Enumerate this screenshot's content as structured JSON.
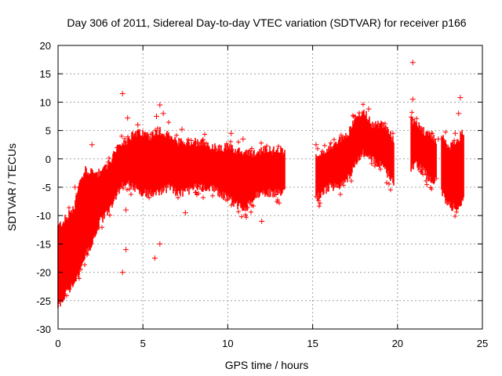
{
  "chart_data": {
    "type": "scatter",
    "title": "Day 306 of 2011, Sidereal Day-to-day VTEC variation (SDTVAR) for receiver p166",
    "xlabel": "GPS time / hours",
    "ylabel": "SDTVAR / TECUs",
    "xlim": [
      0,
      25
    ],
    "ylim": [
      -30,
      20
    ],
    "xticks": [
      0,
      5,
      10,
      15,
      20,
      25
    ],
    "yticks": [
      -30,
      -25,
      -20,
      -15,
      -10,
      -5,
      0,
      5,
      10,
      15,
      20
    ],
    "grid": true,
    "marker": "+",
    "color": "#ff0000",
    "series": [
      {
        "name": "SDTVAR",
        "segments": [
          {
            "x": [
              0.0,
              0.3,
              0.6,
              1.0,
              1.3,
              1.6,
              2.0,
              2.5,
              3.0,
              3.5,
              4.0,
              4.5,
              5.0,
              5.5,
              6.0,
              6.5,
              7.0,
              7.5,
              8.0,
              8.5,
              9.0,
              9.5,
              10.0,
              10.5,
              11.0,
              11.5,
              12.0,
              12.5,
              13.0,
              13.4
            ],
            "upper": [
              -12,
              -11,
              -10,
              -8,
              -4,
              -2,
              -2.5,
              -2.5,
              -1,
              2,
              3,
              4.5,
              4.5,
              4,
              5,
              4,
              3,
              3,
              3,
              3,
              2,
              2,
              2,
              1.5,
              1,
              1,
              1.5,
              1.5,
              1.5,
              1.5
            ],
            "lower": [
              -26,
              -25,
              -23,
              -22,
              -20,
              -17,
              -15,
              -11,
              -9,
              -6,
              -4,
              -5,
              -6,
              -6,
              -6,
              -5,
              -6,
              -6,
              -5,
              -5,
              -5,
              -6,
              -7,
              -8,
              -9,
              -7,
              -6,
              -6,
              -6,
              -6
            ]
          },
          {
            "x": [
              15.2,
              15.5,
              16.0,
              16.5,
              17.0,
              17.5,
              18.0,
              18.5,
              19.0,
              19.5,
              19.8
            ],
            "upper": [
              1,
              1,
              2,
              3,
              4,
              7,
              8.5,
              6,
              6,
              5,
              3
            ],
            "lower": [
              -7,
              -6,
              -5,
              -5,
              -4,
              -1,
              1,
              0,
              -1,
              -3,
              -4
            ]
          },
          {
            "x": [
              20.8,
              21.0,
              21.5,
              22.0,
              22.3
            ],
            "upper": [
              7,
              6.5,
              5,
              4,
              3
            ],
            "lower": [
              -2,
              -1,
              -2,
              -4,
              -4
            ]
          },
          {
            "x": [
              22.6,
              23.0,
              23.5,
              23.9
            ],
            "upper": [
              4,
              2,
              3,
              5
            ],
            "lower": [
              -6,
              -8,
              -9,
              -7
            ]
          }
        ],
        "outliers": [
          [
            3.8,
            11.5
          ],
          [
            5.8,
            7.5
          ],
          [
            6.0,
            9.5
          ],
          [
            6.2,
            8
          ],
          [
            4.1,
            7.2
          ],
          [
            4.7,
            6
          ],
          [
            2.0,
            2.5
          ],
          [
            7.3,
            5.2
          ],
          [
            10.2,
            4.5
          ],
          [
            10.9,
            3.5
          ],
          [
            12.0,
            -11
          ],
          [
            3.8,
            -20
          ],
          [
            4.0,
            -16
          ],
          [
            4.0,
            -9
          ],
          [
            5.7,
            -17.5
          ],
          [
            7.5,
            -9.5
          ],
          [
            6.0,
            -15
          ],
          [
            1.0,
            -5
          ],
          [
            20.9,
            17
          ],
          [
            20.9,
            10.5
          ],
          [
            23.7,
            10.8
          ],
          [
            23.6,
            8
          ],
          [
            18.3,
            8.8
          ],
          [
            15.2,
            2.5
          ],
          [
            22.4,
            3.5
          ],
          [
            23.4,
            4.5
          ]
        ]
      }
    ]
  }
}
